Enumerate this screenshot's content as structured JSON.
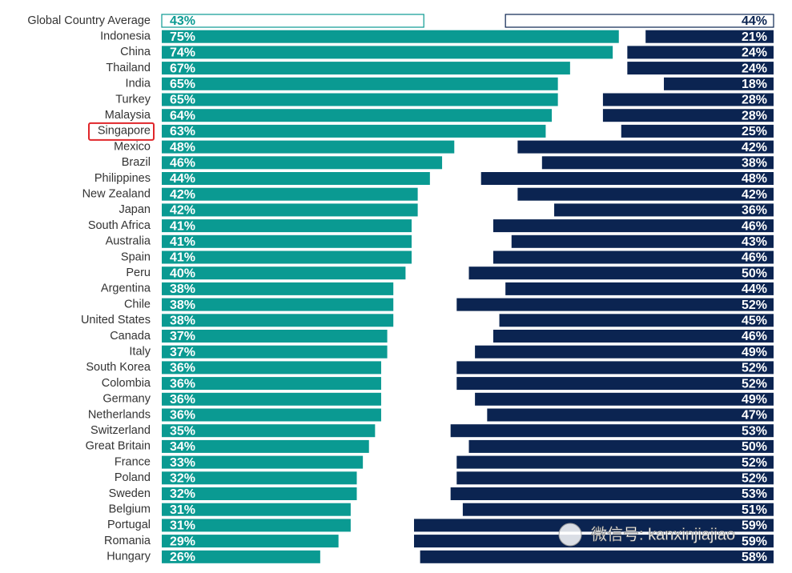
{
  "chart_data": {
    "type": "diverging-bar",
    "categories": [
      "Global Country Average",
      "Indonesia",
      "China",
      "Thailand",
      "India",
      "Turkey",
      "Malaysia",
      "Singapore",
      "Mexico",
      "Brazil",
      "Philippines",
      "New Zealand",
      "Japan",
      "South Africa",
      "Australia",
      "Spain",
      "Peru",
      "Argentina",
      "Chile",
      "United States",
      "Canada",
      "Italy",
      "South Korea",
      "Colombia",
      "Germany",
      "Netherlands",
      "Switzerland",
      "Great Britain",
      "France",
      "Poland",
      "Sweden",
      "Belgium",
      "Portugal",
      "Romania",
      "Hungary"
    ],
    "series": [
      {
        "color": "#0a9a92",
        "side": "left",
        "values": [
          43,
          75,
          74,
          67,
          65,
          65,
          64,
          63,
          48,
          46,
          44,
          42,
          42,
          41,
          41,
          41,
          40,
          38,
          38,
          38,
          37,
          37,
          36,
          36,
          36,
          36,
          35,
          34,
          33,
          32,
          32,
          31,
          31,
          29,
          26
        ],
        "value_labels": [
          "43%",
          "75%",
          "74%",
          "67%",
          "65%",
          "65%",
          "64%",
          "63%",
          "48%",
          "46%",
          "44%",
          "42%",
          "42%",
          "41%",
          "41%",
          "41%",
          "40%",
          "38%",
          "38%",
          "38%",
          "37%",
          "37%",
          "36%",
          "36%",
          "36%",
          "36%",
          "35%",
          "34%",
          "33%",
          "32%",
          "32%",
          "31%",
          "31%",
          "29%",
          "26%"
        ]
      },
      {
        "color": "#0b2451",
        "side": "right",
        "values": [
          44,
          21,
          24,
          24,
          18,
          28,
          28,
          25,
          42,
          38,
          48,
          42,
          36,
          46,
          43,
          46,
          50,
          44,
          52,
          45,
          46,
          49,
          52,
          52,
          49,
          47,
          53,
          50,
          52,
          52,
          53,
          51,
          59,
          59,
          58
        ],
        "value_labels": [
          "44%",
          "21%",
          "24%",
          "24%",
          "18%",
          "28%",
          "28%",
          "25%",
          "42%",
          "38%",
          "48%",
          "42%",
          "36%",
          "46%",
          "43%",
          "46%",
          "50%",
          "44%",
          "52%",
          "45%",
          "46%",
          "49%",
          "52%",
          "52%",
          "49%",
          "47%",
          "53%",
          "50%",
          "52%",
          "52%",
          "53%",
          "51%",
          "59%",
          "59%",
          "58%"
        ]
      }
    ],
    "xlim": [
      0,
      100
    ],
    "outlined_rows": [
      0
    ],
    "highlight": "Singapore",
    "highlight_color": "#e0262a",
    "watermark": "微信号: kanxinjiajiao"
  }
}
